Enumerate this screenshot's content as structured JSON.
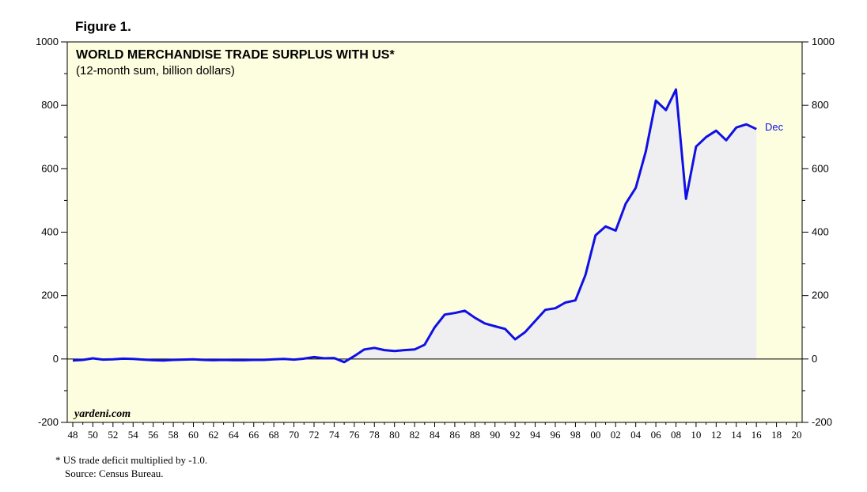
{
  "figure_label": "Figure 1.",
  "brand": "yardeni.com",
  "footnote": "*  US trade deficit multiplied by -1.0.",
  "source": "Source: Census Bureau.",
  "colors": {
    "plot_background": "#fdfde0",
    "line": "#1010e6",
    "area_fill": "#efeff1",
    "end_label": "#1010e6"
  },
  "chart_data": {
    "type": "area",
    "title": "WORLD MERCHANDISE TRADE SURPLUS WITH US*",
    "subtitle": "(12-month sum, billion dollars)",
    "ylim": [
      -200,
      1000
    ],
    "xlim": [
      1948,
      2020
    ],
    "yticks": [
      -200,
      0,
      200,
      400,
      600,
      800,
      1000
    ],
    "ytick_labels": [
      "-200",
      "0",
      "200",
      "400",
      "600",
      "800",
      "1000"
    ],
    "xtick_labels": [
      "48",
      "50",
      "52",
      "54",
      "56",
      "58",
      "60",
      "62",
      "64",
      "66",
      "68",
      "70",
      "72",
      "74",
      "76",
      "78",
      "80",
      "82",
      "84",
      "86",
      "88",
      "90",
      "92",
      "94",
      "96",
      "98",
      "00",
      "02",
      "04",
      "06",
      "08",
      "10",
      "12",
      "14",
      "16",
      "18",
      "20"
    ],
    "grid": false,
    "end_label": "Dec",
    "series": [
      {
        "x": [
          1948,
          1949,
          1950,
          1951,
          1952,
          1953,
          1954,
          1955,
          1956,
          1957,
          1958,
          1959,
          1960,
          1961,
          1962,
          1963,
          1964,
          1965,
          1966,
          1967,
          1968,
          1969,
          1970,
          1971,
          1972,
          1973,
          1974,
          1975,
          1976,
          1977,
          1978,
          1979,
          1980,
          1981,
          1982,
          1983,
          1984,
          1985,
          1986,
          1987,
          1988,
          1989,
          1990,
          1991,
          1992,
          1993,
          1994,
          1995,
          1996,
          1997,
          1998,
          1999,
          2000,
          2001,
          2002,
          2003,
          2004,
          2005,
          2006,
          2007,
          2008,
          2009,
          2010,
          2011,
          2012,
          2013,
          2014,
          2015,
          2016
        ],
        "y": [
          -5,
          -3,
          2,
          -2,
          -1,
          1,
          0,
          -2,
          -4,
          -5,
          -3,
          -2,
          -1,
          -3,
          -4,
          -3,
          -4,
          -4,
          -3,
          -3,
          -1,
          0,
          -2,
          1,
          6,
          2,
          3,
          -10,
          9,
          30,
          35,
          28,
          25,
          28,
          30,
          45,
          100,
          140,
          145,
          152,
          130,
          112,
          103,
          95,
          62,
          85,
          120,
          155,
          160,
          178,
          185,
          265,
          390,
          418,
          405,
          490,
          540,
          655,
          815,
          785,
          850,
          505,
          670,
          700,
          720,
          690,
          730,
          740,
          725
        ]
      }
    ]
  }
}
